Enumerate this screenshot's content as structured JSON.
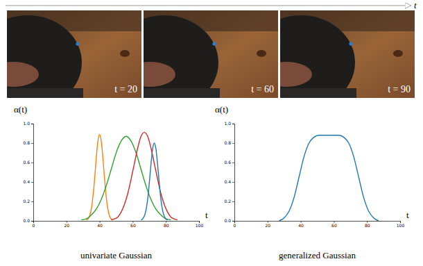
{
  "frames": {
    "axis_label": "t",
    "labels": [
      "t = 20",
      "t = 60",
      "t = 90"
    ]
  },
  "chart_data": [
    {
      "type": "line",
      "caption": "univariate Gaussian",
      "xlabel": "t",
      "ylabel": "α(t)",
      "xlim": [
        0,
        100
      ],
      "ylim": [
        0,
        1
      ],
      "xticks": [
        0,
        20,
        40,
        60,
        80,
        100
      ],
      "yticks": [
        {
          "value": 0,
          "label": "0.0"
        },
        {
          "value": 0.2,
          "label": "0.2"
        },
        {
          "value": 0.4,
          "label": "0.4"
        },
        {
          "value": 0.6,
          "label": "0.6"
        },
        {
          "value": 0.8,
          "label": "0.8"
        },
        {
          "value": 1,
          "label": "1.0"
        }
      ],
      "grid": false,
      "series": [
        {
          "color": "#ff7f0e",
          "x": [
            32,
            33,
            34,
            35,
            36,
            37,
            38,
            39,
            40,
            41,
            42,
            43,
            44,
            45,
            46,
            47,
            48
          ],
          "values": [
            0.01,
            0.02,
            0.05,
            0.12,
            0.25,
            0.43,
            0.65,
            0.82,
            0.89,
            0.82,
            0.65,
            0.43,
            0.25,
            0.12,
            0.05,
            0.02,
            0.01
          ]
        },
        {
          "color": "#2ca02c",
          "x": [
            29,
            32,
            35,
            38,
            41,
            44,
            47,
            50,
            53,
            56,
            59,
            62,
            65,
            68,
            71,
            74,
            77,
            80,
            83
          ],
          "values": [
            0.01,
            0.02,
            0.06,
            0.12,
            0.22,
            0.36,
            0.53,
            0.7,
            0.82,
            0.87,
            0.82,
            0.7,
            0.53,
            0.36,
            0.22,
            0.12,
            0.06,
            0.02,
            0.01
          ]
        },
        {
          "color": "#d62728",
          "x": [
            47,
            49,
            51,
            53,
            55,
            57,
            59,
            61,
            63,
            65,
            67,
            69,
            71,
            73,
            75,
            77,
            79,
            81,
            83,
            85,
            87
          ],
          "values": [
            0.01,
            0.02,
            0.04,
            0.09,
            0.17,
            0.28,
            0.43,
            0.59,
            0.75,
            0.87,
            0.91,
            0.87,
            0.75,
            0.59,
            0.43,
            0.28,
            0.17,
            0.09,
            0.04,
            0.02,
            0.01
          ]
        },
        {
          "color": "#1f77b4",
          "x": [
            65,
            66,
            67,
            68,
            69,
            70,
            71,
            72,
            73,
            74,
            75,
            76,
            77,
            78,
            79,
            80,
            81
          ],
          "values": [
            0.01,
            0.02,
            0.05,
            0.11,
            0.22,
            0.39,
            0.58,
            0.74,
            0.8,
            0.74,
            0.58,
            0.39,
            0.22,
            0.11,
            0.05,
            0.02,
            0.01
          ]
        }
      ]
    },
    {
      "type": "line",
      "caption": "generalized Gaussian",
      "xlabel": "t",
      "ylabel": "α(t)",
      "xlim": [
        0,
        100
      ],
      "ylim": [
        0,
        1
      ],
      "xticks": [
        0,
        20,
        40,
        60,
        80,
        100
      ],
      "yticks": [
        {
          "value": 0,
          "label": "0.0"
        },
        {
          "value": 0.2,
          "label": "0.2"
        },
        {
          "value": 0.4,
          "label": "0.4"
        },
        {
          "value": 0.6,
          "label": "0.6"
        },
        {
          "value": 0.8,
          "label": "0.8"
        },
        {
          "value": 1,
          "label": "1.0"
        }
      ],
      "grid": false,
      "series": [
        {
          "color": "#1f77b4",
          "x": [
            27,
            30,
            33,
            36,
            39,
            42,
            45,
            48,
            51,
            54,
            57,
            60,
            63,
            66,
            69,
            72,
            75,
            78,
            81,
            84,
            87
          ],
          "values": [
            0,
            0.03,
            0.1,
            0.24,
            0.45,
            0.66,
            0.8,
            0.86,
            0.88,
            0.88,
            0.88,
            0.88,
            0.88,
            0.86,
            0.8,
            0.66,
            0.45,
            0.24,
            0.1,
            0.03,
            0
          ]
        }
      ]
    }
  ]
}
